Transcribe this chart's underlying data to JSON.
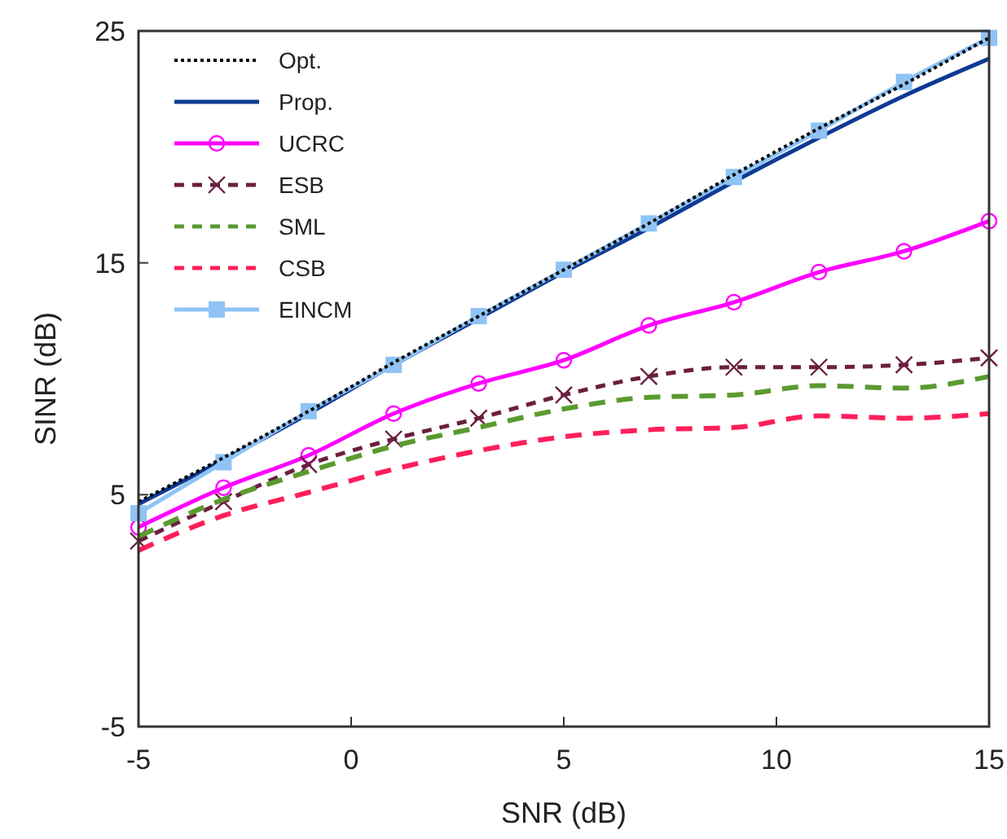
{
  "chart_data": {
    "type": "line",
    "xlabel": "SNR (dB)",
    "ylabel": "SINR (dB)",
    "x": [
      -5,
      -3,
      -1,
      1,
      3,
      5,
      7,
      9,
      11,
      13,
      15
    ],
    "xlim": [
      -5,
      15
    ],
    "xticks": [
      -5,
      0,
      5,
      10,
      15
    ],
    "ylim": [
      -5,
      25
    ],
    "yticks": [
      -5,
      5,
      15,
      25
    ],
    "grid": false,
    "legend": "top left",
    "series": [
      {
        "name": "Opt.",
        "color": "#000000",
        "line_style": "dotted",
        "marker": "none",
        "values": [
          4.7,
          6.6,
          8.6,
          10.7,
          12.7,
          14.7,
          16.7,
          18.8,
          20.8,
          22.7,
          24.7
        ]
      },
      {
        "name": "Prop.",
        "color": "#0d3a94",
        "line_style": "solid",
        "marker": "none",
        "values": [
          4.6,
          6.5,
          8.5,
          10.6,
          12.6,
          14.6,
          16.5,
          18.5,
          20.4,
          22.2,
          23.8
        ]
      },
      {
        "name": "UCRC",
        "color": "#ff00ff",
        "line_style": "solid",
        "marker": "circle",
        "values": [
          3.6,
          5.3,
          6.7,
          8.5,
          9.8,
          10.8,
          12.3,
          13.3,
          14.6,
          15.5,
          16.8
        ]
      },
      {
        "name": "ESB",
        "color": "#6b1f3f",
        "line_style": "dashed",
        "marker": "cross",
        "values": [
          3.0,
          4.7,
          6.3,
          7.4,
          8.3,
          9.3,
          10.1,
          10.5,
          10.5,
          10.6,
          10.9
        ]
      },
      {
        "name": "SML",
        "color": "#5a9a2f",
        "line_style": "dashed",
        "marker": "none",
        "values": [
          3.2,
          4.8,
          6.0,
          7.1,
          7.9,
          8.7,
          9.2,
          9.3,
          9.7,
          9.6,
          10.1
        ]
      },
      {
        "name": "CSB",
        "color": "#ff1f5a",
        "line_style": "dashed",
        "marker": "none",
        "values": [
          2.6,
          4.1,
          5.1,
          6.1,
          6.9,
          7.5,
          7.8,
          7.9,
          8.4,
          8.3,
          8.5
        ]
      },
      {
        "name": "EINCM",
        "color": "#8fc3f5",
        "line_style": "solid",
        "marker": "square",
        "values": [
          4.2,
          6.4,
          8.6,
          10.6,
          12.7,
          14.7,
          16.7,
          18.7,
          20.7,
          22.8,
          24.7
        ]
      }
    ]
  }
}
